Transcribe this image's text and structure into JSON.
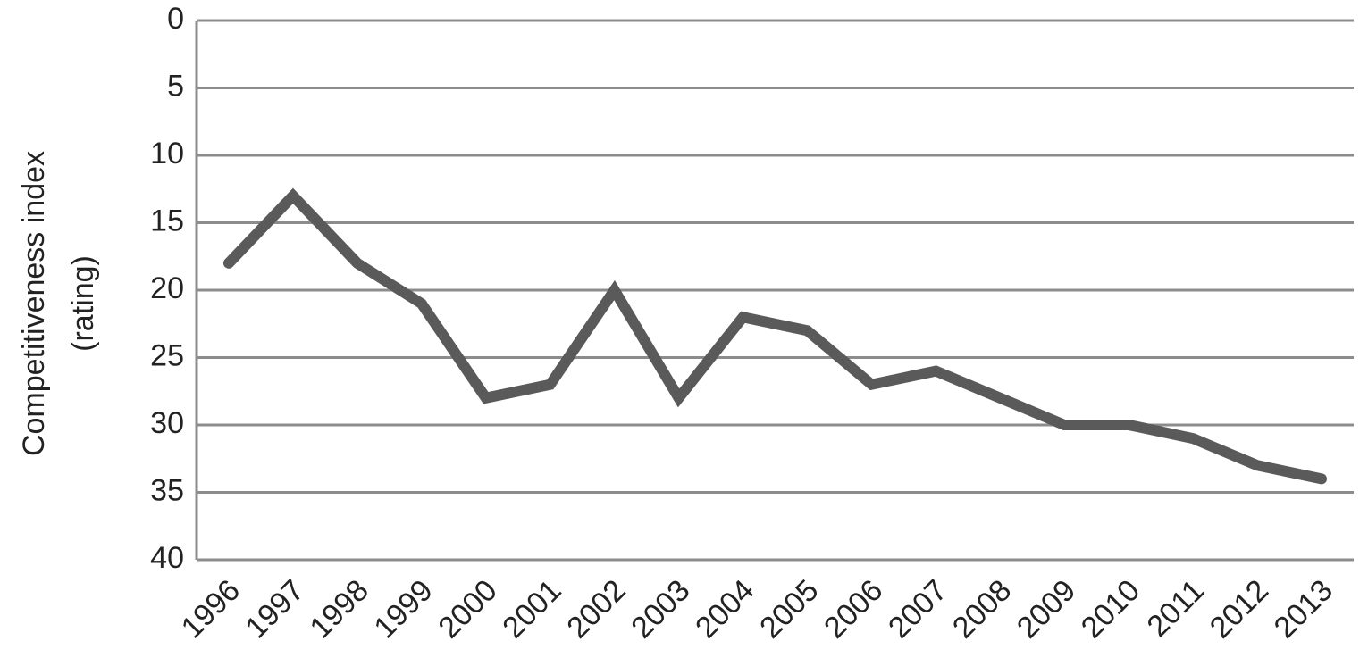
{
  "chart_data": {
    "type": "line",
    "ylabel": [
      "Competitiveness index",
      "(rating)"
    ],
    "categories": [
      "1996",
      "1997",
      "1998",
      "1999",
      "2000",
      "2001",
      "2002",
      "2003",
      "2004",
      "2005",
      "2006",
      "2007",
      "2008",
      "2009",
      "2010",
      "2011",
      "2012",
      "2013"
    ],
    "series": [
      {
        "color": "#5a5a5a",
        "values": [
          18,
          13,
          18,
          21,
          28,
          27,
          20,
          28,
          22,
          23,
          27,
          26,
          28,
          30,
          30,
          31,
          33,
          34
        ]
      }
    ],
    "ylim": [
      40,
      0
    ],
    "yticks": [
      0,
      5,
      10,
      15,
      20,
      25,
      30,
      35,
      40
    ],
    "grid": true
  }
}
